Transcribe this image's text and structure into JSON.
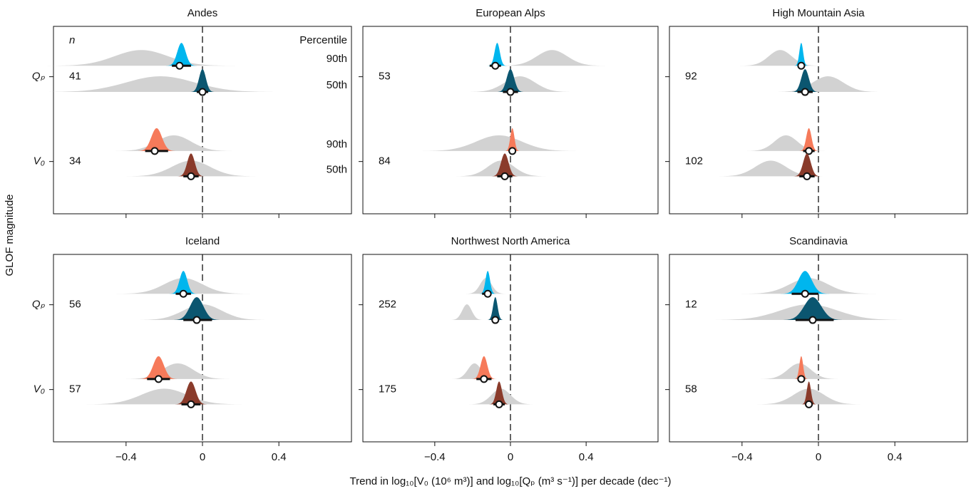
{
  "figure": {
    "xlabel": "Trend in log₁₀[V₀ (10⁶ m³)] and log₁₀[Qₚ (m³ s⁻¹)] per decade (dec⁻¹)",
    "ylabel": "GLOF magnitude",
    "n_header": "n",
    "percentile_header": "Percentile",
    "groups": [
      "Qₚ",
      "V₀"
    ],
    "percentiles": [
      "90th",
      "50th"
    ],
    "colors": [
      "#00b6ee",
      "#0b5670",
      "#f67a5a",
      "#8a3b2b"
    ],
    "gray": "#d2d2d2"
  },
  "chart_data": [
    {
      "type": "ridgeline",
      "title": "Andes",
      "n": [
        41,
        34
      ],
      "xlim": [
        -0.78,
        0.78
      ],
      "xticks": [
        {
          "value": -0.4,
          "label": "−0.4"
        },
        0,
        0.4
      ],
      "rows": [
        {
          "estimate": -0.12,
          "interval": [
            -0.16,
            -0.06
          ],
          "density": {
            "mean": -0.11,
            "sd": 0.022
          },
          "gray": {
            "mean": -0.32,
            "sd": 0.14
          }
        },
        {
          "estimate": 0.0,
          "interval": [
            -0.03,
            0.03
          ],
          "density": {
            "mean": 0.0,
            "sd": 0.018
          },
          "gray": {
            "mean": -0.22,
            "sd": 0.18
          }
        },
        {
          "estimate": -0.25,
          "interval": [
            -0.3,
            -0.18
          ],
          "density": {
            "mean": -0.24,
            "sd": 0.028
          },
          "gray": {
            "mean": -0.15,
            "sd": 0.09
          }
        },
        {
          "estimate": -0.06,
          "interval": [
            -0.1,
            -0.02
          ],
          "density": {
            "mean": -0.06,
            "sd": 0.02
          },
          "gray": {
            "mean": -0.06,
            "sd": 0.1
          }
        }
      ]
    },
    {
      "type": "ridgeline",
      "title": "European Alps",
      "n": [
        53,
        84
      ],
      "xlim": [
        -0.78,
        0.78
      ],
      "xticks": [
        {
          "value": -0.4,
          "label": "−0.4"
        },
        0,
        0.4
      ],
      "rows": [
        {
          "estimate": -0.08,
          "interval": [
            -0.11,
            -0.05
          ],
          "density": {
            "mean": -0.07,
            "sd": 0.014
          },
          "gray": {
            "mean": 0.22,
            "sd": 0.08
          }
        },
        {
          "estimate": 0.0,
          "interval": [
            -0.04,
            0.04
          ],
          "density": {
            "mean": 0.0,
            "sd": 0.02
          },
          "gray": {
            "mean": 0.05,
            "sd": 0.08
          }
        },
        {
          "estimate": 0.01,
          "interval": [
            -0.01,
            0.03
          ],
          "density": {
            "mean": 0.01,
            "sd": 0.011
          },
          "gray": {
            "mean": -0.06,
            "sd": 0.12
          }
        },
        {
          "estimate": -0.03,
          "interval": [
            -0.07,
            0.01
          ],
          "density": {
            "mean": -0.03,
            "sd": 0.02
          },
          "gray": {
            "mean": -0.05,
            "sd": 0.07
          }
        }
      ]
    },
    {
      "type": "ridgeline",
      "title": "High Mountain Asia",
      "n": [
        92,
        102
      ],
      "xlim": [
        -0.78,
        0.78
      ],
      "xticks": [
        {
          "value": -0.4,
          "label": "−0.4"
        },
        0,
        0.4
      ],
      "rows": [
        {
          "estimate": -0.09,
          "interval": [
            -0.11,
            -0.07
          ],
          "density": {
            "mean": -0.09,
            "sd": 0.01
          },
          "gray": {
            "mean": -0.2,
            "sd": 0.06
          }
        },
        {
          "estimate": -0.07,
          "interval": [
            -0.11,
            -0.03
          ],
          "density": {
            "mean": -0.07,
            "sd": 0.02
          },
          "gray": {
            "mean": 0.05,
            "sd": 0.08
          }
        },
        {
          "estimate": -0.05,
          "interval": [
            -0.08,
            -0.02
          ],
          "density": {
            "mean": -0.05,
            "sd": 0.014
          },
          "gray": {
            "mean": -0.17,
            "sd": 0.06
          }
        },
        {
          "estimate": -0.06,
          "interval": [
            -0.1,
            -0.02
          ],
          "density": {
            "mean": -0.06,
            "sd": 0.02
          },
          "gray": {
            "mean": -0.25,
            "sd": 0.08
          }
        }
      ]
    },
    {
      "type": "ridgeline",
      "title": "Iceland",
      "n": [
        56,
        57
      ],
      "xlim": [
        -0.78,
        0.78
      ],
      "xticks": [
        {
          "value": -0.4,
          "label": "−0.4"
        },
        0,
        0.4
      ],
      "rows": [
        {
          "estimate": -0.1,
          "interval": [
            -0.14,
            -0.06
          ],
          "density": {
            "mean": -0.1,
            "sd": 0.02
          },
          "gray": {
            "mean": -0.1,
            "sd": 0.1
          }
        },
        {
          "estimate": -0.03,
          "interval": [
            -0.1,
            0.05
          ],
          "density": {
            "mean": -0.03,
            "sd": 0.035
          },
          "gray": {
            "mean": 0.0,
            "sd": 0.1
          }
        },
        {
          "estimate": -0.23,
          "interval": [
            -0.29,
            -0.17
          ],
          "density": {
            "mean": -0.23,
            "sd": 0.028
          },
          "gray": {
            "mean": -0.13,
            "sd": 0.08
          }
        },
        {
          "estimate": -0.06,
          "interval": [
            -0.11,
            -0.01
          ],
          "density": {
            "mean": -0.06,
            "sd": 0.024
          },
          "gray": {
            "mean": -0.2,
            "sd": 0.12
          }
        }
      ]
    },
    {
      "type": "ridgeline",
      "title": "Northwest North America",
      "n": [
        252,
        175
      ],
      "xlim": [
        -0.78,
        0.78
      ],
      "xticks": [
        {
          "value": -0.4,
          "label": "−0.4"
        },
        0,
        0.4
      ],
      "rows": [
        {
          "estimate": -0.12,
          "interval": [
            -0.15,
            -0.1
          ],
          "density": {
            "mean": -0.12,
            "sd": 0.012
          },
          "gray": {
            "mean": -0.13,
            "sd": 0.03
          }
        },
        {
          "estimate": -0.08,
          "interval": [
            -0.1,
            -0.06
          ],
          "density": {
            "mean": -0.08,
            "sd": 0.012
          },
          "gray": {
            "mean": -0.23,
            "sd": 0.025
          }
        },
        {
          "estimate": -0.14,
          "interval": [
            -0.18,
            -0.1
          ],
          "density": {
            "mean": -0.14,
            "sd": 0.018
          },
          "gray": {
            "mean": -0.19,
            "sd": 0.035
          }
        },
        {
          "estimate": -0.06,
          "interval": [
            -0.09,
            -0.03
          ],
          "density": {
            "mean": -0.06,
            "sd": 0.015
          },
          "gray": {
            "mean": -0.05,
            "sd": 0.05
          }
        }
      ]
    },
    {
      "type": "ridgeline",
      "title": "Scandinavia",
      "n": [
        12,
        58
      ],
      "xlim": [
        -0.78,
        0.78
      ],
      "xticks": [
        {
          "value": -0.4,
          "label": "−0.4"
        },
        0,
        0.4
      ],
      "rows": [
        {
          "estimate": -0.07,
          "interval": [
            -0.14,
            0.0
          ],
          "density": {
            "mean": -0.07,
            "sd": 0.035
          },
          "gray": {
            "mean": -0.05,
            "sd": 0.1
          }
        },
        {
          "estimate": -0.03,
          "interval": [
            -0.12,
            0.08
          ],
          "density": {
            "mean": -0.03,
            "sd": 0.045
          },
          "gray": {
            "mean": -0.05,
            "sd": 0.15
          }
        },
        {
          "estimate": -0.09,
          "interval": [
            -0.11,
            -0.07
          ],
          "density": {
            "mean": -0.09,
            "sd": 0.01
          },
          "gray": {
            "mean": -0.1,
            "sd": 0.06
          }
        },
        {
          "estimate": -0.05,
          "interval": [
            -0.07,
            -0.03
          ],
          "density": {
            "mean": -0.05,
            "sd": 0.011
          },
          "gray": {
            "mean": -0.05,
            "sd": 0.08
          }
        }
      ]
    }
  ]
}
